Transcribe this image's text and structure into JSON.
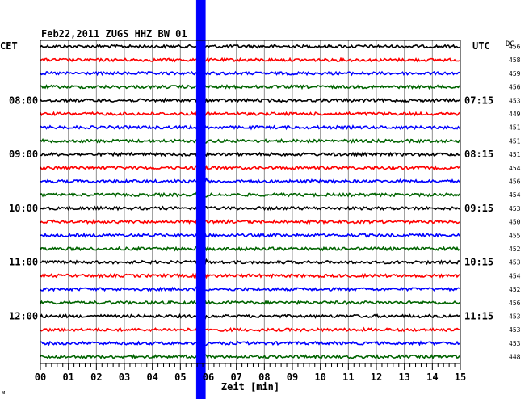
{
  "chart_data": {
    "type": "line",
    "title": "Feb22,2011   ZUGS HHZ BW 01",
    "left_header": "CET",
    "right_header": "UTC",
    "dc_header": "DC",
    "xlabel": "Zeit [min]",
    "xlim": [
      0,
      15
    ],
    "x_ticks": [
      "00",
      "01",
      "02",
      "03",
      "04",
      "05",
      "06",
      "07",
      "08",
      "09",
      "10",
      "11",
      "12",
      "13",
      "14",
      "15"
    ],
    "left_time_labels": [
      {
        "trace": 4,
        "text": "08:00"
      },
      {
        "trace": 8,
        "text": "09:00"
      },
      {
        "trace": 12,
        "text": "10:00"
      },
      {
        "trace": 16,
        "text": "11:00"
      },
      {
        "trace": 20,
        "text": "12:00"
      }
    ],
    "right_time_labels": [
      {
        "trace": 4,
        "text": "07:15"
      },
      {
        "trace": 8,
        "text": "08:15"
      },
      {
        "trace": 12,
        "text": "09:15"
      },
      {
        "trace": 16,
        "text": "10:15"
      },
      {
        "trace": 20,
        "text": "11:15"
      }
    ],
    "dc_values": [
      456,
      458,
      459,
      456,
      453,
      449,
      451,
      451,
      451,
      454,
      456,
      454,
      453,
      450,
      455,
      452,
      453,
      454,
      452,
      456,
      453,
      453,
      453,
      448
    ],
    "series_colors": [
      "#000000",
      "#ff0000",
      "#0000ff",
      "#006400"
    ],
    "event_color": "#0000ff",
    "event_time_min": 5.75,
    "corner_mark": "ᴍ"
  }
}
